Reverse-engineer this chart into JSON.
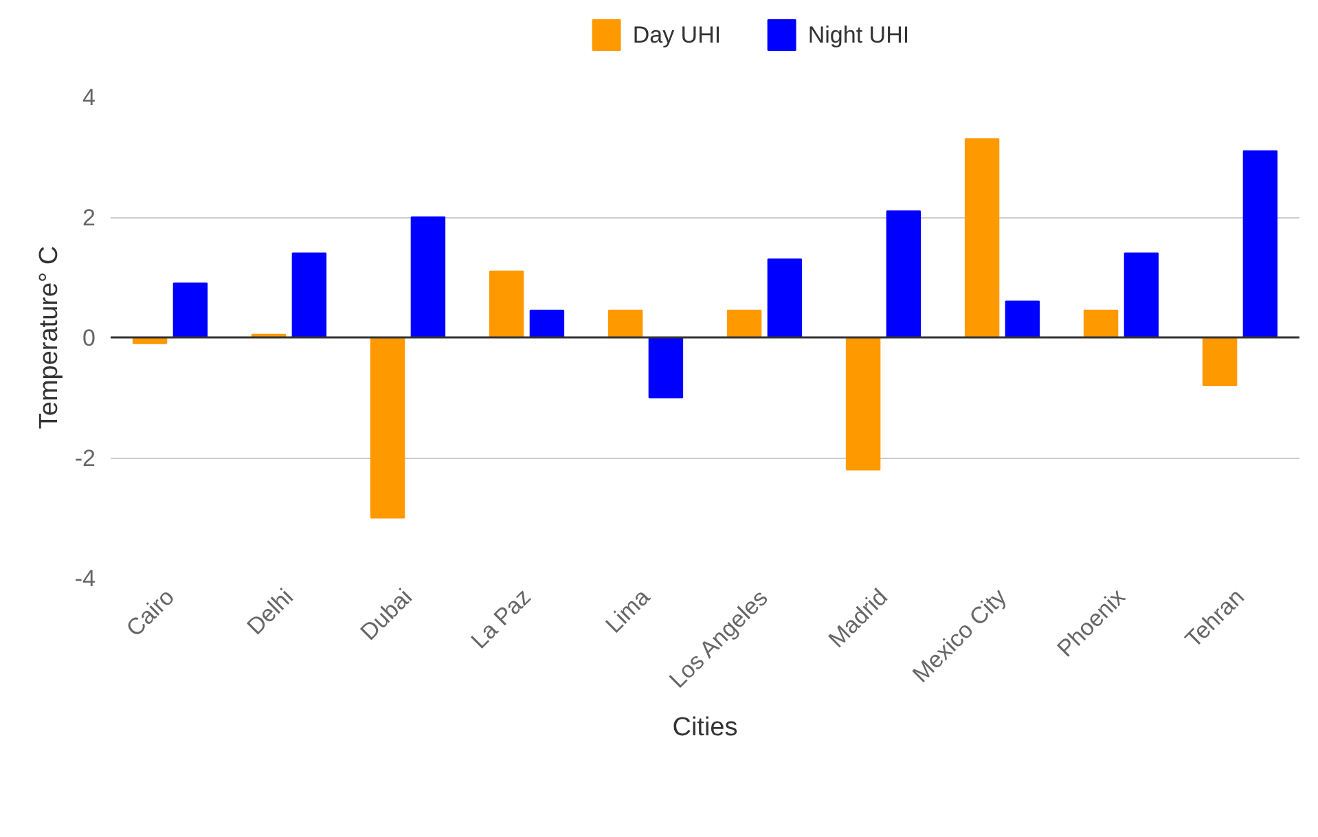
{
  "chart_data": {
    "type": "bar",
    "xlabel": "Cities",
    "ylabel": "Temperature° C",
    "categories": [
      "Cairo",
      "Delhi",
      "Dubai",
      "La Paz",
      "Lima",
      "Los Angeles",
      "Madrid",
      "Mexico City",
      "Phoenix",
      "Tehran"
    ],
    "series": [
      {
        "name": "Day UHI",
        "color": "#ff9900",
        "values": [
          -0.1,
          0.05,
          -3.0,
          1.1,
          0.45,
          0.45,
          -2.2,
          3.3,
          0.45,
          -0.8
        ]
      },
      {
        "name": "Night UHI",
        "color": "#0000ff",
        "values": [
          0.9,
          1.4,
          2.0,
          0.45,
          -1.0,
          1.3,
          2.1,
          0.6,
          1.4,
          3.1
        ]
      }
    ],
    "ylim": [
      -4,
      4
    ],
    "yticks": [
      -4,
      -2,
      0,
      2,
      4
    ],
    "grid": "y",
    "legend": "top"
  }
}
